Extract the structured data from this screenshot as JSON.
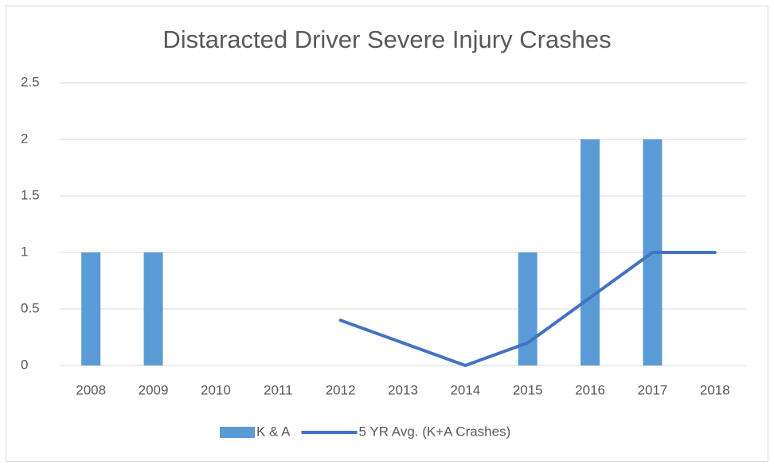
{
  "chart_data": {
    "type": "bar",
    "title": "Distaracted Driver Severe Injury Crashes",
    "categories": [
      "2008",
      "2009",
      "2010",
      "2011",
      "2012",
      "2013",
      "2014",
      "2015",
      "2016",
      "2017",
      "2018"
    ],
    "series": [
      {
        "name": "K & A",
        "type": "bar",
        "color": "#5b9bd5",
        "values": [
          1,
          1,
          0,
          0,
          0,
          0,
          0,
          1,
          2,
          2,
          0
        ]
      },
      {
        "name": "5 YR Avg. (K+A Crashes)",
        "type": "line",
        "color": "#4472c4",
        "values": [
          null,
          null,
          null,
          null,
          0.4,
          0.2,
          0,
          0.2,
          0.6,
          1,
          1
        ]
      }
    ],
    "ylim": [
      0,
      2.5
    ],
    "yticks": [
      0,
      0.5,
      1,
      1.5,
      2,
      2.5
    ],
    "grid": true,
    "legend": "bottom"
  }
}
